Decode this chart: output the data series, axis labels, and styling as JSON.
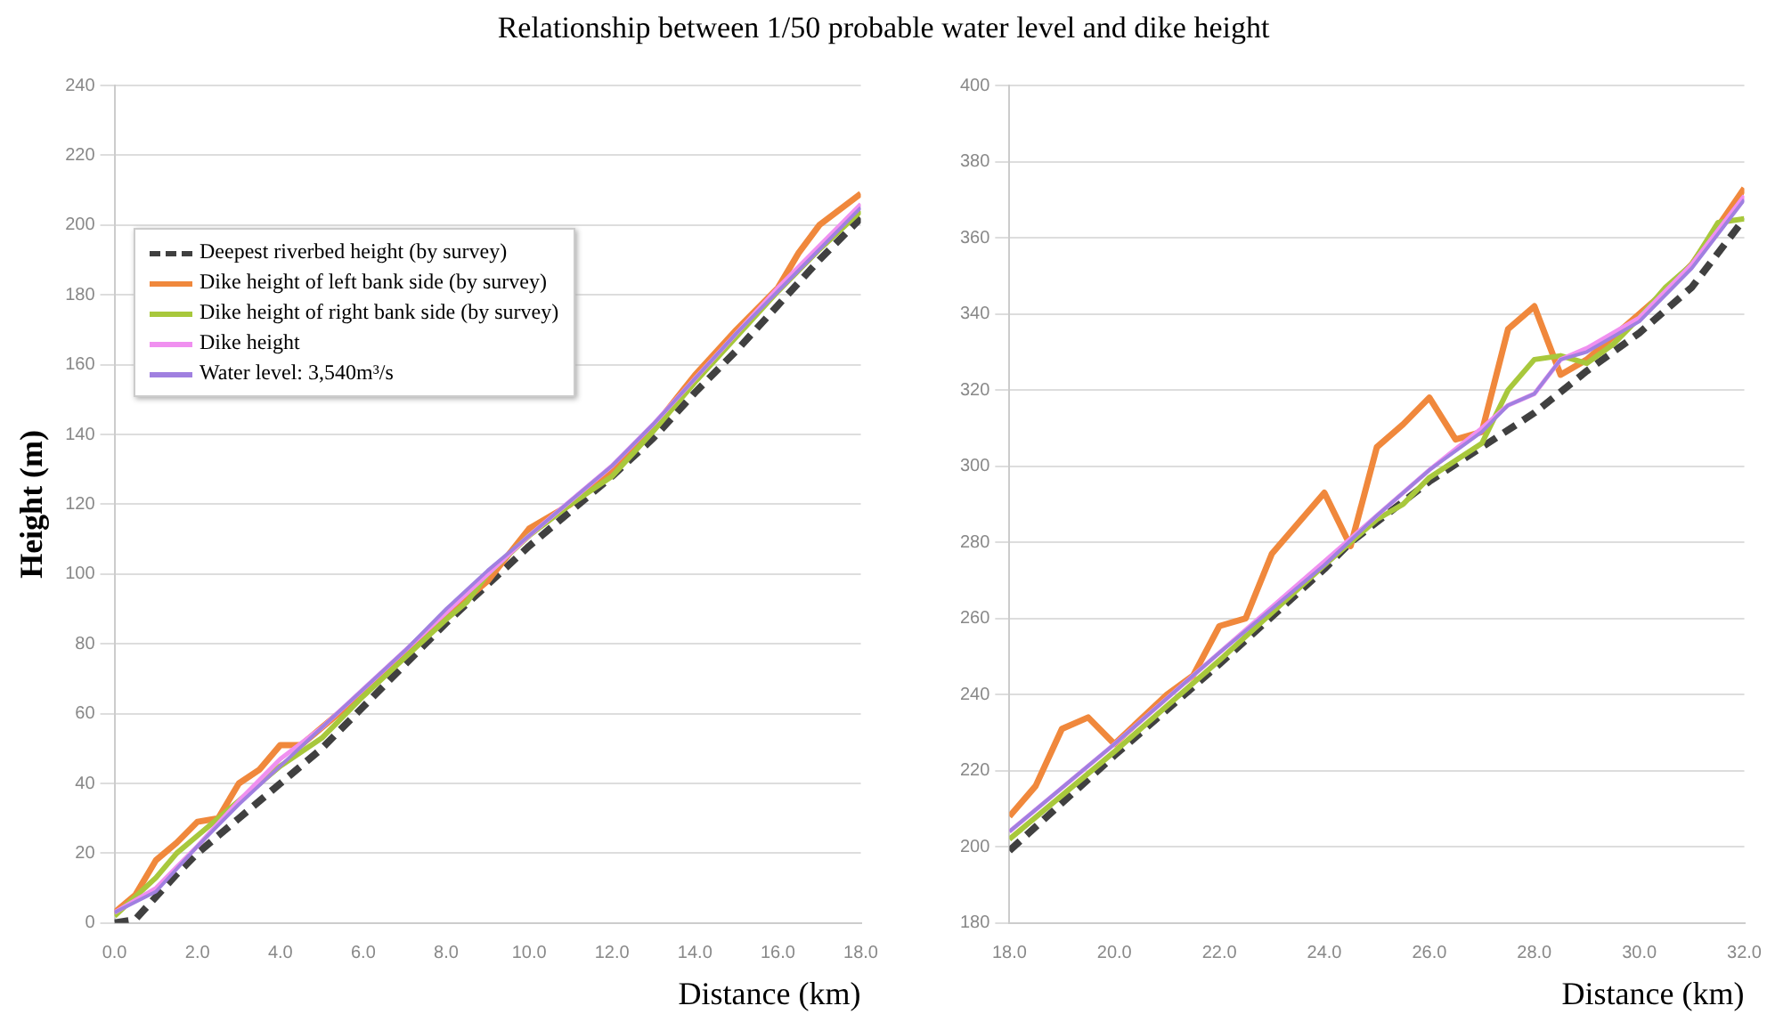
{
  "chart_data": [
    {
      "type": "line",
      "title": "Relationship between 1/50 probable water level and dike height",
      "xlabel": "Distance (km)",
      "ylabel": "Height (m)",
      "xlim": [
        0,
        18
      ],
      "ylim": [
        0,
        240
      ],
      "xticks": [
        {
          "value": 0,
          "label": "0.0"
        },
        {
          "value": 2,
          "label": "2.0"
        },
        {
          "value": 4,
          "label": "4.0"
        },
        {
          "value": 6,
          "label": "6.0"
        },
        {
          "value": 8,
          "label": "8.0"
        },
        {
          "value": 10,
          "label": "10.0"
        },
        {
          "value": 12,
          "label": "12.0"
        },
        {
          "value": 14,
          "label": "14.0"
        },
        {
          "value": 16,
          "label": "16.0"
        },
        {
          "value": 18,
          "label": "18.0"
        }
      ],
      "yticks": [
        0,
        20,
        40,
        60,
        80,
        100,
        120,
        140,
        160,
        180,
        200,
        220,
        240
      ],
      "grid": "y",
      "legend": "top left",
      "marker": "none",
      "series": [
        {
          "name": "Deepest riverbed height (by survey)",
          "color": "#404040",
          "line_style": "dashed",
          "x": [
            0,
            0.5,
            1.5,
            2,
            3,
            4,
            5,
            6,
            7,
            8,
            9,
            10,
            11,
            12,
            13,
            14,
            15,
            16,
            17,
            18
          ],
          "values": [
            0,
            1,
            14,
            20,
            30,
            40,
            50,
            62,
            74,
            86,
            97,
            108,
            118,
            128,
            139,
            152,
            164,
            177,
            190,
            202
          ]
        },
        {
          "name": "Dike height of left bank side (by survey)",
          "color": "#f0883c",
          "line_style": "solid",
          "x": [
            0,
            0.5,
            1,
            1.5,
            2,
            2.5,
            3,
            3.5,
            4,
            4.5,
            5,
            6,
            7,
            8,
            8.5,
            9,
            10,
            11,
            12,
            13,
            14,
            15,
            16,
            16.5,
            17,
            18
          ],
          "values": [
            3,
            8,
            18,
            23,
            29,
            30,
            40,
            44,
            51,
            51,
            56,
            66,
            77,
            88,
            93,
            98,
            113,
            120,
            130,
            142,
            157,
            170,
            182,
            192,
            200,
            209
          ]
        },
        {
          "name": "Dike height of right bank side (by survey)",
          "color": "#a8c83c",
          "line_style": "solid",
          "x": [
            0,
            1,
            1.5,
            2,
            3,
            4,
            5,
            6,
            7,
            8,
            8.5,
            9,
            10,
            11,
            12,
            13,
            14,
            15,
            16,
            17,
            18
          ],
          "values": [
            2,
            13,
            20,
            25,
            35,
            45,
            53,
            65,
            76,
            87,
            92,
            100,
            111,
            120,
            128,
            141,
            155,
            168,
            181,
            193,
            204
          ]
        },
        {
          "name": "Dike height",
          "color": "#f090f0",
          "line_style": "solid",
          "x": [
            0,
            1,
            2,
            3,
            4,
            5,
            6,
            7,
            8,
            9,
            10,
            11,
            12,
            13,
            14,
            15,
            16,
            17,
            18
          ],
          "values": [
            3,
            10,
            22,
            35,
            47,
            56,
            67,
            78,
            89,
            100,
            111,
            121,
            131,
            143,
            156,
            169,
            182,
            194,
            206
          ]
        },
        {
          "name": "Water level: 3,540m³/s",
          "color": "#a080e0",
          "line_style": "solid",
          "x": [
            0,
            1,
            2,
            3,
            4,
            5,
            6,
            7,
            8,
            9,
            10,
            11,
            12,
            13,
            14,
            15,
            16,
            17,
            18
          ],
          "values": [
            3,
            9,
            22,
            34,
            45,
            56,
            67,
            78,
            90,
            101,
            111,
            121,
            131,
            143,
            156,
            169,
            181,
            193,
            205
          ]
        }
      ]
    },
    {
      "type": "line",
      "xlabel": "Distance (km)",
      "xlim": [
        18,
        32
      ],
      "ylim": [
        180,
        400
      ],
      "xticks": [
        {
          "value": 18,
          "label": "18.0"
        },
        {
          "value": 20,
          "label": "20.0"
        },
        {
          "value": 22,
          "label": "22.0"
        },
        {
          "value": 24,
          "label": "24.0"
        },
        {
          "value": 26,
          "label": "26.0"
        },
        {
          "value": 28,
          "label": "28.0"
        },
        {
          "value": 30,
          "label": "30.0"
        },
        {
          "value": 32,
          "label": "32.0"
        }
      ],
      "yticks": [
        180,
        200,
        220,
        240,
        260,
        280,
        300,
        320,
        340,
        360,
        380,
        400
      ],
      "grid": "y",
      "marker": "none",
      "series": [
        {
          "color": "#404040",
          "line_style": "dashed",
          "x": [
            18,
            20,
            22,
            24,
            24.5,
            26,
            27,
            28,
            29,
            30,
            31,
            32
          ],
          "values": [
            199,
            224,
            248,
            273,
            280,
            296,
            305,
            314,
            325,
            335,
            347,
            365
          ]
        },
        {
          "color": "#f0883c",
          "line_style": "solid",
          "x": [
            18,
            18.5,
            19,
            19.5,
            20,
            21,
            21.5,
            22,
            22.5,
            23,
            23.5,
            24,
            24.5,
            25,
            25.5,
            26,
            26.5,
            27,
            27.5,
            28,
            28.5,
            29,
            29.5,
            30,
            30.5,
            31,
            31.5,
            32
          ],
          "values": [
            208,
            216,
            231,
            234,
            227,
            240,
            245,
            258,
            260,
            277,
            285,
            293,
            279,
            305,
            311,
            318,
            307,
            309,
            336,
            342,
            324,
            328,
            334,
            340,
            346,
            353,
            363,
            373
          ]
        },
        {
          "color": "#a8c83c",
          "line_style": "solid",
          "x": [
            18,
            20,
            22,
            24,
            25,
            25.5,
            26,
            27,
            27.5,
            28,
            28.5,
            29,
            29.5,
            30,
            30.5,
            31,
            31.5,
            32
          ],
          "values": [
            202,
            225,
            249,
            274,
            286,
            290,
            297,
            306,
            320,
            328,
            329,
            327,
            332,
            339,
            347,
            353,
            364,
            365
          ]
        },
        {
          "color": "#f090f0",
          "line_style": "solid",
          "x": [
            18,
            20,
            22,
            24,
            25,
            26,
            27,
            27.5,
            28,
            28.5,
            29,
            30,
            31,
            32
          ],
          "values": [
            204,
            227,
            251,
            275,
            287,
            299,
            310,
            316,
            319,
            328,
            331,
            339,
            353,
            371
          ]
        },
        {
          "color": "#a080e0",
          "line_style": "solid",
          "x": [
            18,
            20,
            22,
            24,
            25,
            26,
            27,
            27.5,
            28,
            28.5,
            29,
            30,
            31,
            32
          ],
          "values": [
            204,
            227,
            251,
            274,
            287,
            299,
            309,
            316,
            319,
            328,
            330,
            338,
            352,
            370
          ]
        }
      ]
    }
  ]
}
